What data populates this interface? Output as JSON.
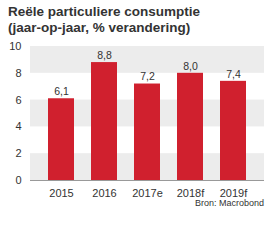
{
  "chart_data": {
    "type": "bar",
    "title": "Reële particuliere consumptie",
    "subtitle": "(jaar-op-jaar, % verandering)",
    "source": "Bron: Macrobond",
    "categories": [
      "2015",
      "2016",
      "2017e",
      "2018f",
      "2019f"
    ],
    "values": [
      6.1,
      8.8,
      7.2,
      8.0,
      7.4
    ],
    "value_labels": [
      "6,1",
      "8,8",
      "7,2",
      "8,0",
      "7,4"
    ],
    "data_labels": true,
    "color": "#d0202e",
    "ylim": [
      0,
      10
    ],
    "yticks": [
      0,
      2,
      4,
      6,
      8,
      10
    ],
    "grid": true
  }
}
